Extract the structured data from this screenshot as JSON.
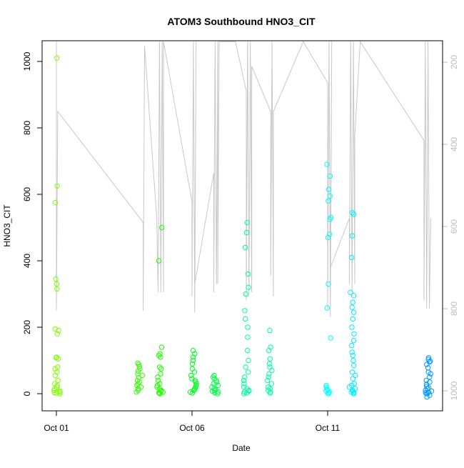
{
  "chart_data": {
    "type": "scatter",
    "title": "ATOM3 Southbound HNO3_CIT",
    "xlabel": "Date",
    "ylabel": "HNO3_CIT",
    "x_unit": "days since Oct 01",
    "xlim": [
      -0.53,
      14.24
    ],
    "ylim": [
      -52,
      1062
    ],
    "x_ticks": [
      {
        "value": 0,
        "label": "Oct 01"
      },
      {
        "value": 5,
        "label": "Oct 06"
      },
      {
        "value": 10,
        "label": "Oct 11"
      }
    ],
    "y_ticks": [
      0,
      200,
      400,
      600,
      800,
      1000
    ],
    "y2_axis": {
      "label": "",
      "reversed": true,
      "ticks": [
        200,
        400,
        600,
        800,
        1000
      ],
      "color": "#bebebe"
    },
    "grid": false,
    "series": [
      {
        "name": "HNO3_CIT",
        "color": "#80ff00",
        "day": 0.02,
        "values": [
          1010,
          625,
          575,
          345,
          330,
          315,
          195,
          190,
          180,
          110,
          108,
          105,
          80,
          75,
          65,
          55,
          40,
          30,
          25,
          20,
          15,
          10,
          8,
          5,
          3,
          2,
          0
        ]
      },
      {
        "name": "HNO3_CIT",
        "color": "#33ff00",
        "day": 3.05,
        "values": [
          92,
          88,
          82,
          75,
          68,
          60,
          55,
          48,
          40,
          35,
          30,
          25,
          20,
          15,
          10,
          5
        ]
      },
      {
        "name": "HNO3_CIT",
        "color": "#22ff00",
        "day": 3.82,
        "values": [
          500,
          400,
          140,
          120,
          115,
          110,
          80,
          75,
          60,
          50,
          40,
          30,
          25,
          20,
          15,
          10,
          8,
          5,
          3,
          2,
          0
        ]
      },
      {
        "name": "HNO3_CIT",
        "color": "#00ff22",
        "day": 5.05,
        "values": [
          130,
          120,
          110,
          100,
          90,
          75,
          65,
          55,
          45,
          40,
          35,
          30,
          25,
          20,
          15,
          12,
          10,
          5,
          2
        ]
      },
      {
        "name": "HNO3_CIT",
        "color": "#00ff44",
        "day": 5.85,
        "values": [
          55,
          50,
          45,
          40,
          35,
          30,
          25,
          20,
          15,
          12,
          10,
          8,
          5,
          3,
          0
        ]
      },
      {
        "name": "HNO3_CIT",
        "color": "#00ff99",
        "day": 7.02,
        "values": [
          515,
          485,
          440,
          360,
          320,
          300,
          250,
          225,
          200,
          170,
          130,
          100,
          80,
          65,
          50,
          40,
          30,
          20,
          15,
          10,
          8,
          5,
          2,
          0
        ]
      },
      {
        "name": "HNO3_CIT",
        "color": "#00ffaa",
        "day": 7.9,
        "values": [
          190,
          140,
          130,
          105,
          90,
          80,
          70,
          60,
          50,
          40,
          30,
          20,
          15,
          10,
          5,
          2
        ]
      },
      {
        "name": "HNO3_CIT",
        "color": "#00ffff",
        "day": 10.05,
        "values": [
          690,
          655,
          615,
          595,
          580,
          530,
          525,
          480,
          470,
          330,
          258,
          168,
          25,
          20,
          15,
          10,
          8,
          5,
          3,
          0
        ]
      },
      {
        "name": "HNO3_CIT",
        "color": "#00eeff",
        "day": 10.9,
        "values": [
          545,
          540,
          475,
          410,
          305,
          295,
          275,
          260,
          245,
          225,
          200,
          180,
          160,
          145,
          125,
          115,
          100,
          85,
          65,
          55,
          45,
          30,
          25,
          20,
          15,
          10,
          8,
          5,
          3,
          0
        ]
      },
      {
        "name": "HNO3_CIT",
        "color": "#0099ff",
        "day": 13.72,
        "values": [
          108,
          103,
          98,
          95,
          88,
          78,
          65,
          60,
          50,
          40,
          35,
          28,
          22,
          18,
          15,
          10,
          8,
          5,
          3,
          2,
          0,
          -5,
          -10
        ]
      }
    ],
    "pressure_track": {
      "color": "#c8c8c8",
      "points": [
        [
          0,
          150
        ],
        [
          0,
          805
        ],
        [
          0.05,
          320
        ],
        [
          3.2,
          590
        ],
        [
          3.2,
          805
        ],
        [
          3.25,
          160
        ],
        [
          3.7,
          580
        ],
        [
          3.75,
          760
        ],
        [
          3.8,
          150
        ],
        [
          3.85,
          760
        ],
        [
          3.9,
          150
        ],
        [
          3.95,
          760
        ],
        [
          3.95,
          150
        ],
        [
          5.0,
          540
        ],
        [
          5.0,
          770
        ],
        [
          5.05,
          150
        ],
        [
          5.1,
          810
        ],
        [
          5.15,
          150
        ],
        [
          5.1,
          740
        ],
        [
          5.8,
          470
        ],
        [
          5.8,
          760
        ],
        [
          5.85,
          150
        ],
        [
          5.9,
          740
        ],
        [
          5.95,
          150
        ],
        [
          5.95,
          740
        ],
        [
          6.0,
          150
        ],
        [
          6.6,
          150
        ],
        [
          7.0,
          270
        ],
        [
          7.0,
          780
        ],
        [
          7.05,
          150
        ],
        [
          7.1,
          770
        ],
        [
          7.15,
          150
        ],
        [
          7.2,
          760
        ],
        [
          7.2,
          210
        ],
        [
          7.9,
          320
        ],
        [
          7.9,
          720
        ],
        [
          7.95,
          150
        ],
        [
          8.0,
          770
        ],
        [
          8.0,
          320
        ],
        [
          9.1,
          150
        ],
        [
          10.0,
          250
        ],
        [
          10.0,
          800
        ],
        [
          10.05,
          150
        ],
        [
          10.1,
          820
        ],
        [
          10.15,
          150
        ],
        [
          10.1,
          700
        ],
        [
          10.8,
          580
        ],
        [
          10.8,
          740
        ],
        [
          10.85,
          150
        ],
        [
          10.9,
          760
        ],
        [
          10.95,
          150
        ],
        [
          11.0,
          740
        ],
        [
          11.0,
          380
        ],
        [
          11.2,
          150
        ],
        [
          13.55,
          390
        ],
        [
          13.55,
          780
        ],
        [
          13.6,
          150
        ],
        [
          13.65,
          800
        ],
        [
          13.7,
          150
        ],
        [
          13.75,
          800
        ],
        [
          13.8,
          580
        ]
      ]
    }
  }
}
